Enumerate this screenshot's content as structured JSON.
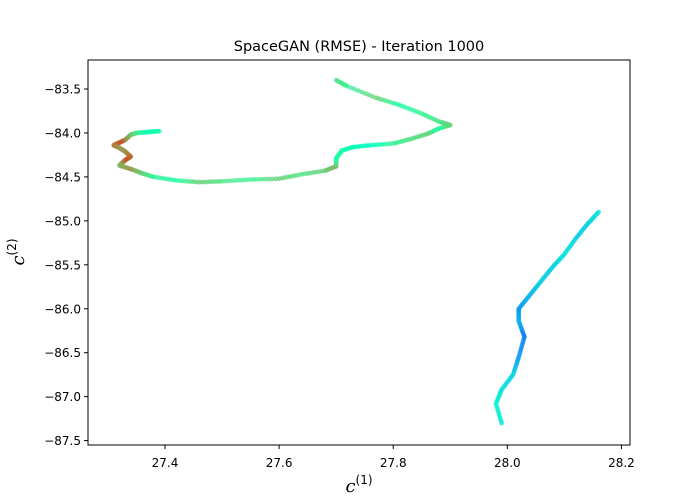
{
  "chart_data": {
    "type": "scatter",
    "title": "SpaceGAN (RMSE) - Iteration 1000",
    "xlabel": {
      "base": "c",
      "sup": "(1)"
    },
    "ylabel": {
      "base": "c",
      "sup": "(2)"
    },
    "xlim": [
      27.265,
      28.215
    ],
    "ylim": [
      -87.55,
      -83.17
    ],
    "xticks": [
      27.4,
      27.6,
      27.8,
      28.0,
      28.2
    ],
    "yticks": [
      -83.5,
      -84.0,
      -84.5,
      -85.0,
      -85.5,
      -86.0,
      -86.5,
      -87.0,
      -87.5
    ],
    "xtick_labels": [
      "27.4",
      "27.6",
      "27.8",
      "28.0",
      "28.2"
    ],
    "ytick_labels": [
      "−83.5",
      "−84.0",
      "−84.5",
      "−85.0",
      "−85.5",
      "−86.0",
      "−86.5",
      "−87.0",
      "−87.5"
    ],
    "grid": false,
    "legend": "none",
    "colormap": "rainbow",
    "series": [
      {
        "points": [
          [
            27.39,
            -83.98,
            0.55
          ],
          [
            27.37,
            -83.99,
            0.5
          ],
          [
            27.35,
            -84.0,
            0.6
          ],
          [
            27.34,
            -84.02,
            0.7
          ],
          [
            27.33,
            -84.08,
            0.8
          ],
          [
            27.32,
            -84.11,
            0.9
          ],
          [
            27.31,
            -84.14,
            0.85
          ],
          [
            27.32,
            -84.17,
            0.8
          ],
          [
            27.33,
            -84.21,
            0.8
          ],
          [
            27.34,
            -84.27,
            0.85
          ],
          [
            27.33,
            -84.31,
            0.9
          ],
          [
            27.32,
            -84.37,
            0.75
          ],
          [
            27.34,
            -84.41,
            0.8
          ],
          [
            27.36,
            -84.46,
            0.7
          ],
          [
            27.38,
            -84.5,
            0.6
          ],
          [
            27.42,
            -84.54,
            0.55
          ],
          [
            27.46,
            -84.56,
            0.7
          ],
          [
            27.5,
            -84.55,
            0.65
          ],
          [
            27.55,
            -84.53,
            0.6
          ],
          [
            27.6,
            -84.52,
            0.7
          ],
          [
            27.64,
            -84.47,
            0.65
          ],
          [
            27.68,
            -84.43,
            0.7
          ],
          [
            27.7,
            -84.38,
            0.75
          ],
          [
            27.7,
            -84.29,
            0.55
          ],
          [
            27.71,
            -84.2,
            0.55
          ],
          [
            27.73,
            -84.16,
            0.5
          ],
          [
            27.76,
            -84.14,
            0.45
          ],
          [
            27.8,
            -84.12,
            0.6
          ],
          [
            27.83,
            -84.07,
            0.65
          ],
          [
            27.86,
            -84.01,
            0.7
          ],
          [
            27.88,
            -83.95,
            0.55
          ],
          [
            27.9,
            -83.91,
            0.7
          ],
          [
            27.88,
            -83.87,
            0.65
          ],
          [
            27.85,
            -83.78,
            0.6
          ],
          [
            27.81,
            -83.68,
            0.55
          ],
          [
            27.77,
            -83.6,
            0.7
          ],
          [
            27.72,
            -83.47,
            0.6
          ],
          [
            27.7,
            -83.4,
            0.65
          ]
        ]
      },
      {
        "points": [
          [
            28.16,
            -84.9,
            0.35
          ],
          [
            28.14,
            -85.04,
            0.3
          ],
          [
            28.12,
            -85.2,
            0.3
          ],
          [
            28.1,
            -85.38,
            0.35
          ],
          [
            28.08,
            -85.52,
            0.3
          ],
          [
            28.06,
            -85.68,
            0.3
          ],
          [
            28.04,
            -85.84,
            0.25
          ],
          [
            28.02,
            -86.0,
            0.2
          ],
          [
            28.02,
            -86.14,
            0.25
          ],
          [
            28.03,
            -86.32,
            0.15
          ],
          [
            28.02,
            -86.55,
            0.2
          ],
          [
            28.01,
            -86.75,
            0.3
          ],
          [
            27.99,
            -86.92,
            0.35
          ],
          [
            27.98,
            -87.08,
            0.4
          ],
          [
            27.99,
            -87.3,
            0.35
          ]
        ]
      }
    ]
  }
}
